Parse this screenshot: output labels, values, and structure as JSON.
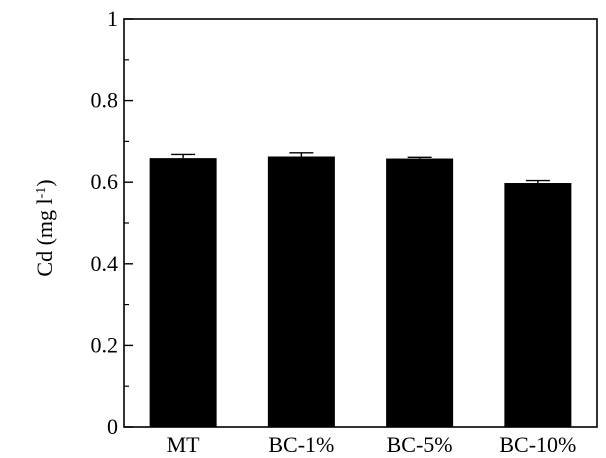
{
  "chart_data": {
    "type": "bar",
    "categories": [
      "MT",
      "BC-1%",
      "BC-5%",
      "BC-10%"
    ],
    "values": [
      0.659,
      0.663,
      0.658,
      0.598
    ],
    "errors": [
      0.009,
      0.009,
      0.003,
      0.006
    ],
    "ylabel_main": "Cd (mg l",
    "ylabel_sup": "-1",
    "ylabel_close": ")",
    "ylim": [
      0,
      1
    ],
    "yticks_major": [
      0,
      0.2,
      0.4,
      0.6,
      0.8,
      1
    ],
    "ytick_labels": [
      "0",
      "0.2",
      "0.4",
      "0.6",
      "0.8",
      "1"
    ],
    "yticks_minor": [
      0.1,
      0.3,
      0.5,
      0.7,
      0.9
    ],
    "grid": false,
    "bar_color": "#000000"
  }
}
